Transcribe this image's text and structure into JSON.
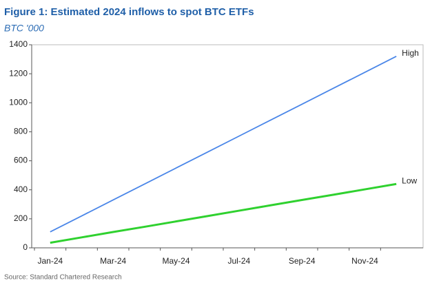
{
  "chart_data": {
    "type": "line",
    "title": "Figure 1: Estimated 2024 inflows to spot BTC ETFs",
    "subtitle": "BTC '000",
    "source": "Source: Standard Chartered Research",
    "categories": [
      "Jan-24",
      null,
      "Mar-24",
      null,
      "May-24",
      null,
      "Jul-24",
      null,
      "Sep-24",
      null,
      "Nov-24",
      null
    ],
    "series": [
      {
        "name": "High",
        "color": "#4a86e8",
        "values": [
          110,
          220,
          330,
          440,
          550,
          660,
          770,
          880,
          990,
          1100,
          1210,
          1320
        ]
      },
      {
        "name": "Low",
        "color": "#2fd12f",
        "values": [
          35,
          72,
          109,
          145,
          182,
          219,
          256,
          293,
          330,
          366,
          403,
          440
        ]
      }
    ],
    "ylim": [
      0,
      1400
    ],
    "yticks": [
      0,
      200,
      400,
      600,
      800,
      1000,
      1200,
      1400
    ],
    "grid": false
  }
}
